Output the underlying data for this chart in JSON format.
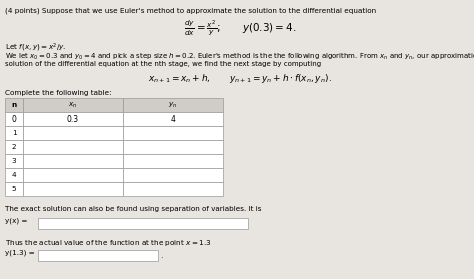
{
  "title": "(4 points) Suppose that we use Euler's method to approximate the solution to the differential equation",
  "equation_main": "$\\frac{dy}{dx} = \\frac{x^2}{y};\\qquad y(0.3) = 4.$",
  "let_line": "Let $f(x, y) = x^2/y$.",
  "desc1": "We let $x_0 = 0.3$ and $y_0 = 4$ and pick a step size $h = 0.2$. Euler's method is the the following algorithm. From $x_n$ and $y_n$, our approximations to the",
  "desc2": "solution of the differential equation at the nth stage, we find the next stage by computing",
  "euler_eq": "$x_{n+1} = x_n + h, \\qquad y_{n+1} = y_n + h \\cdot f(x_n, y_n).$",
  "table_label": "Complete the following table:",
  "col_headers": [
    "n",
    "$x_n$",
    "$y_n$"
  ],
  "row0": [
    "0",
    "0.3",
    "4"
  ],
  "rows": [
    "1",
    "2",
    "3",
    "4",
    "5"
  ],
  "exact_label": "The exact solution can also be found using separation of variables. It is",
  "yx_label": "y(x) =",
  "thus_label": "Thus the actual value of the function at the point $x = 1.3$",
  "y13_label": "y(1.3) =",
  "bg_color": "#e8e4df",
  "white": "#ffffff",
  "header_color": "#d0ccc8",
  "border_color": "#999999"
}
